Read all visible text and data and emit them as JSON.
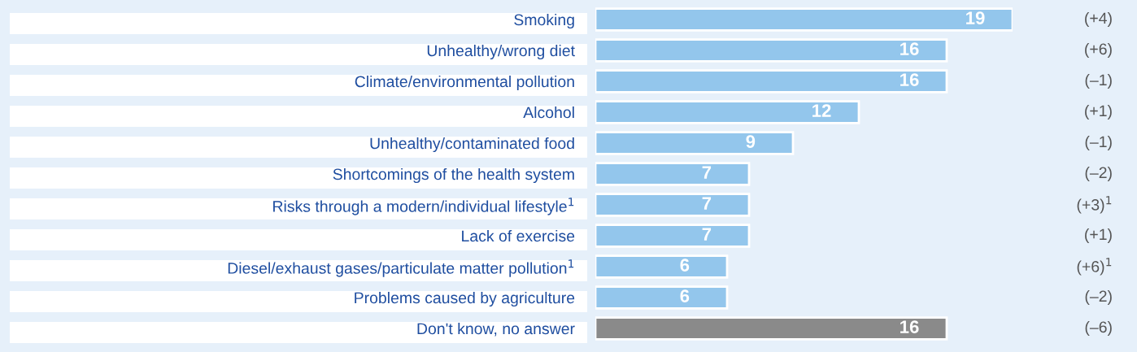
{
  "chart_data": {
    "type": "bar",
    "orientation": "horizontal",
    "data_labels": true,
    "legend": false,
    "grid": false,
    "tick_labels": "y",
    "categories": [
      "Smoking",
      "Unhealthy/wrong diet",
      "Climate/environmental pollution",
      "Alcohol",
      "Unhealthy/contaminated food",
      "Shortcomings of the health system",
      "Risks through a modern/individual lifestyle$^{1}$",
      "Lack of exercise",
      "Diesel/exhaust gases/particulate matter pollution$^{1}$",
      "Problems caused by agriculture",
      "Don't know, no answer"
    ],
    "values": [
      19,
      16,
      16,
      12,
      9,
      7,
      7,
      7,
      6,
      6,
      16
    ],
    "colors": [
      "#93c6ec",
      "#93c6ec",
      "#93c6ec",
      "#93c6ec",
      "#93c6ec",
      "#93c6ec",
      "#93c6ec",
      "#93c6ec",
      "#93c6ec",
      "#93c6ec",
      "#8a8a8a"
    ],
    "annotations": [
      "(+4)",
      "(+6)",
      "(–1)",
      "(+1)",
      "(–1)",
      "(–2)",
      "(+3)$^{1}$",
      "(+1)",
      "(+6)$^{1}$",
      "(–2)",
      "(–6)"
    ]
  }
}
